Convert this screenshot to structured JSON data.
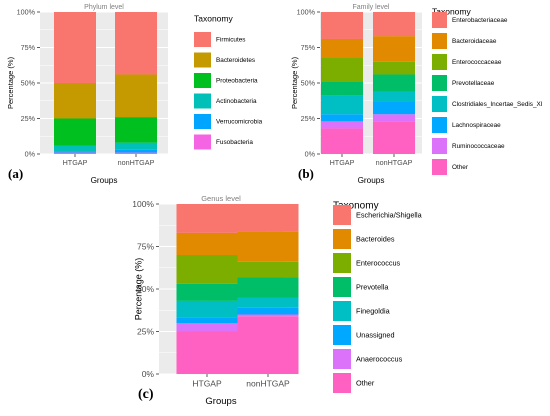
{
  "chart_data": [
    {
      "type": "bar",
      "panel_label": "(a)",
      "title": "Phylum level",
      "xlabel": "Groups",
      "ylabel": "Percentage (%)",
      "ylim": [
        0,
        100
      ],
      "yticks": [
        "0%",
        "25%",
        "50%",
        "75%",
        "100%"
      ],
      "categories": [
        "HTGAP",
        "nonHTGAP"
      ],
      "legend_title": "Taxonomy",
      "legend_position": "right",
      "series": [
        {
          "name": "Firmicutes",
          "color": "#F8766D",
          "values": [
            50,
            44
          ]
        },
        {
          "name": "Bacteroidetes",
          "color": "#C49A00",
          "values": [
            25,
            30
          ]
        },
        {
          "name": "Proteobacteria",
          "color": "#00C01F",
          "values": [
            19,
            18
          ]
        },
        {
          "name": "Actinobacteria",
          "color": "#00C0B8",
          "values": [
            4,
            5
          ]
        },
        {
          "name": "Verrucomicrobia",
          "color": "#00A5FF",
          "values": [
            1,
            2
          ]
        },
        {
          "name": "Fusobacteria",
          "color": "#F564E3",
          "values": [
            1,
            1
          ]
        }
      ]
    },
    {
      "type": "bar",
      "panel_label": "(b)",
      "title": "Family level",
      "xlabel": "Groups",
      "ylabel": "Percentage (%)",
      "ylim": [
        0,
        100
      ],
      "yticks": [
        "0%",
        "25%",
        "50%",
        "75%",
        "100%"
      ],
      "categories": [
        "HTGAP",
        "nonHTGAP"
      ],
      "legend_title": "Taxonomy",
      "legend_position": "right",
      "series": [
        {
          "name": "Enterobacteriaceae",
          "color": "#F8766D",
          "values": [
            19,
            17
          ]
        },
        {
          "name": "Bacteroidaceae",
          "color": "#E18A00",
          "values": [
            13,
            18
          ]
        },
        {
          "name": "Enterococcaceae",
          "color": "#7CAE00",
          "values": [
            17,
            9
          ]
        },
        {
          "name": "Prevotellaceae",
          "color": "#00BE67",
          "values": [
            10,
            12
          ]
        },
        {
          "name": "Clostridiales_Incertae_Sedis_XI",
          "color": "#00BFC4",
          "values": [
            13,
            7
          ]
        },
        {
          "name": "Lachnospiraceae",
          "color": "#00A9FF",
          "values": [
            5,
            9
          ]
        },
        {
          "name": "Ruminococcaceae",
          "color": "#DC71FA",
          "values": [
            5,
            5
          ]
        },
        {
          "name": "Other",
          "color": "#FF61C3",
          "values": [
            18,
            23
          ]
        }
      ]
    },
    {
      "type": "bar",
      "panel_label": "(c)",
      "title": "Genus level",
      "xlabel": "Groups",
      "ylabel": "Percentage (%)",
      "ylim": [
        0,
        100
      ],
      "yticks": [
        "0%",
        "25%",
        "50%",
        "75%",
        "100%"
      ],
      "categories": [
        "HTGAP",
        "nonHTGAP"
      ],
      "legend_title": "Taxonomy",
      "legend_position": "right",
      "series": [
        {
          "name": "Escherichia/Shigella",
          "color": "#F8766D",
          "values": [
            17,
            16
          ]
        },
        {
          "name": "Bacteroides",
          "color": "#E18A00",
          "values": [
            13,
            18
          ]
        },
        {
          "name": "Enterococcus",
          "color": "#7CAE00",
          "values": [
            17,
            9
          ]
        },
        {
          "name": "Prevotella",
          "color": "#00BE67",
          "values": [
            10,
            12
          ]
        },
        {
          "name": "Finegoldia",
          "color": "#00BFC4",
          "values": [
            10,
            6
          ]
        },
        {
          "name": "Unassigned",
          "color": "#00A9FF",
          "values": [
            3,
            4
          ]
        },
        {
          "name": "Anaerococcus",
          "color": "#DC71FA",
          "values": [
            5,
            1
          ]
        },
        {
          "name": "Other",
          "color": "#FF61C3",
          "values": [
            25,
            34
          ]
        }
      ]
    }
  ]
}
